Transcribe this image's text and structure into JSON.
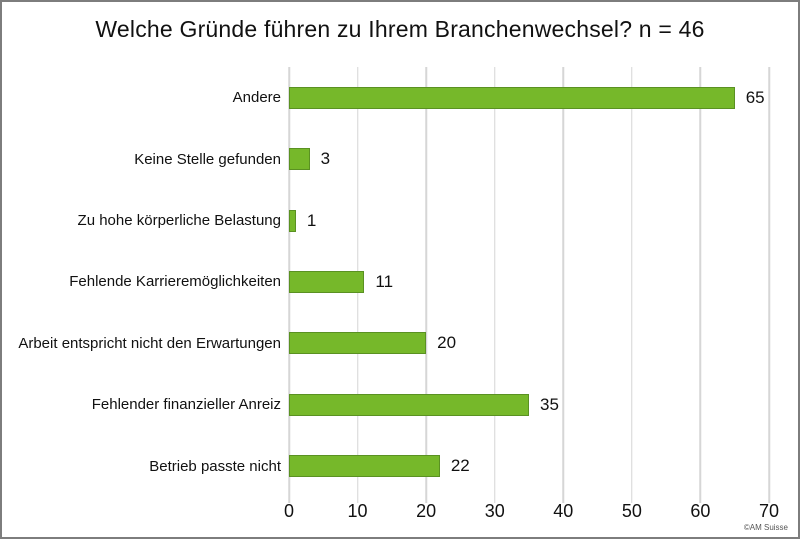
{
  "chart_data": {
    "type": "bar",
    "orientation": "horizontal",
    "title": "Welche Gründe führen zu Ihrem Branchenwechsel? n = 46",
    "categories": [
      "Andere",
      "Keine Stelle gefunden",
      "Zu hohe körperliche Belastung",
      "Fehlende Karrieremöglichkeiten",
      "Arbeit entspricht nicht den Erwartungen",
      "Fehlender finanzieller Anreiz",
      "Betrieb passte nicht"
    ],
    "values": [
      65,
      3,
      1,
      11,
      20,
      35,
      22
    ],
    "xlim": [
      0,
      70
    ],
    "x_ticks": [
      0,
      10,
      20,
      30,
      40,
      50,
      60,
      70
    ],
    "xlabel": "",
    "ylabel": "",
    "grid": "vertical",
    "legend": "none",
    "value_labels": true,
    "bar_color": "#76b82a",
    "bar_border_color": "#5a9122",
    "gridline_color": "#d6d6d6"
  },
  "footer": {
    "credit": "©AM Suisse"
  }
}
